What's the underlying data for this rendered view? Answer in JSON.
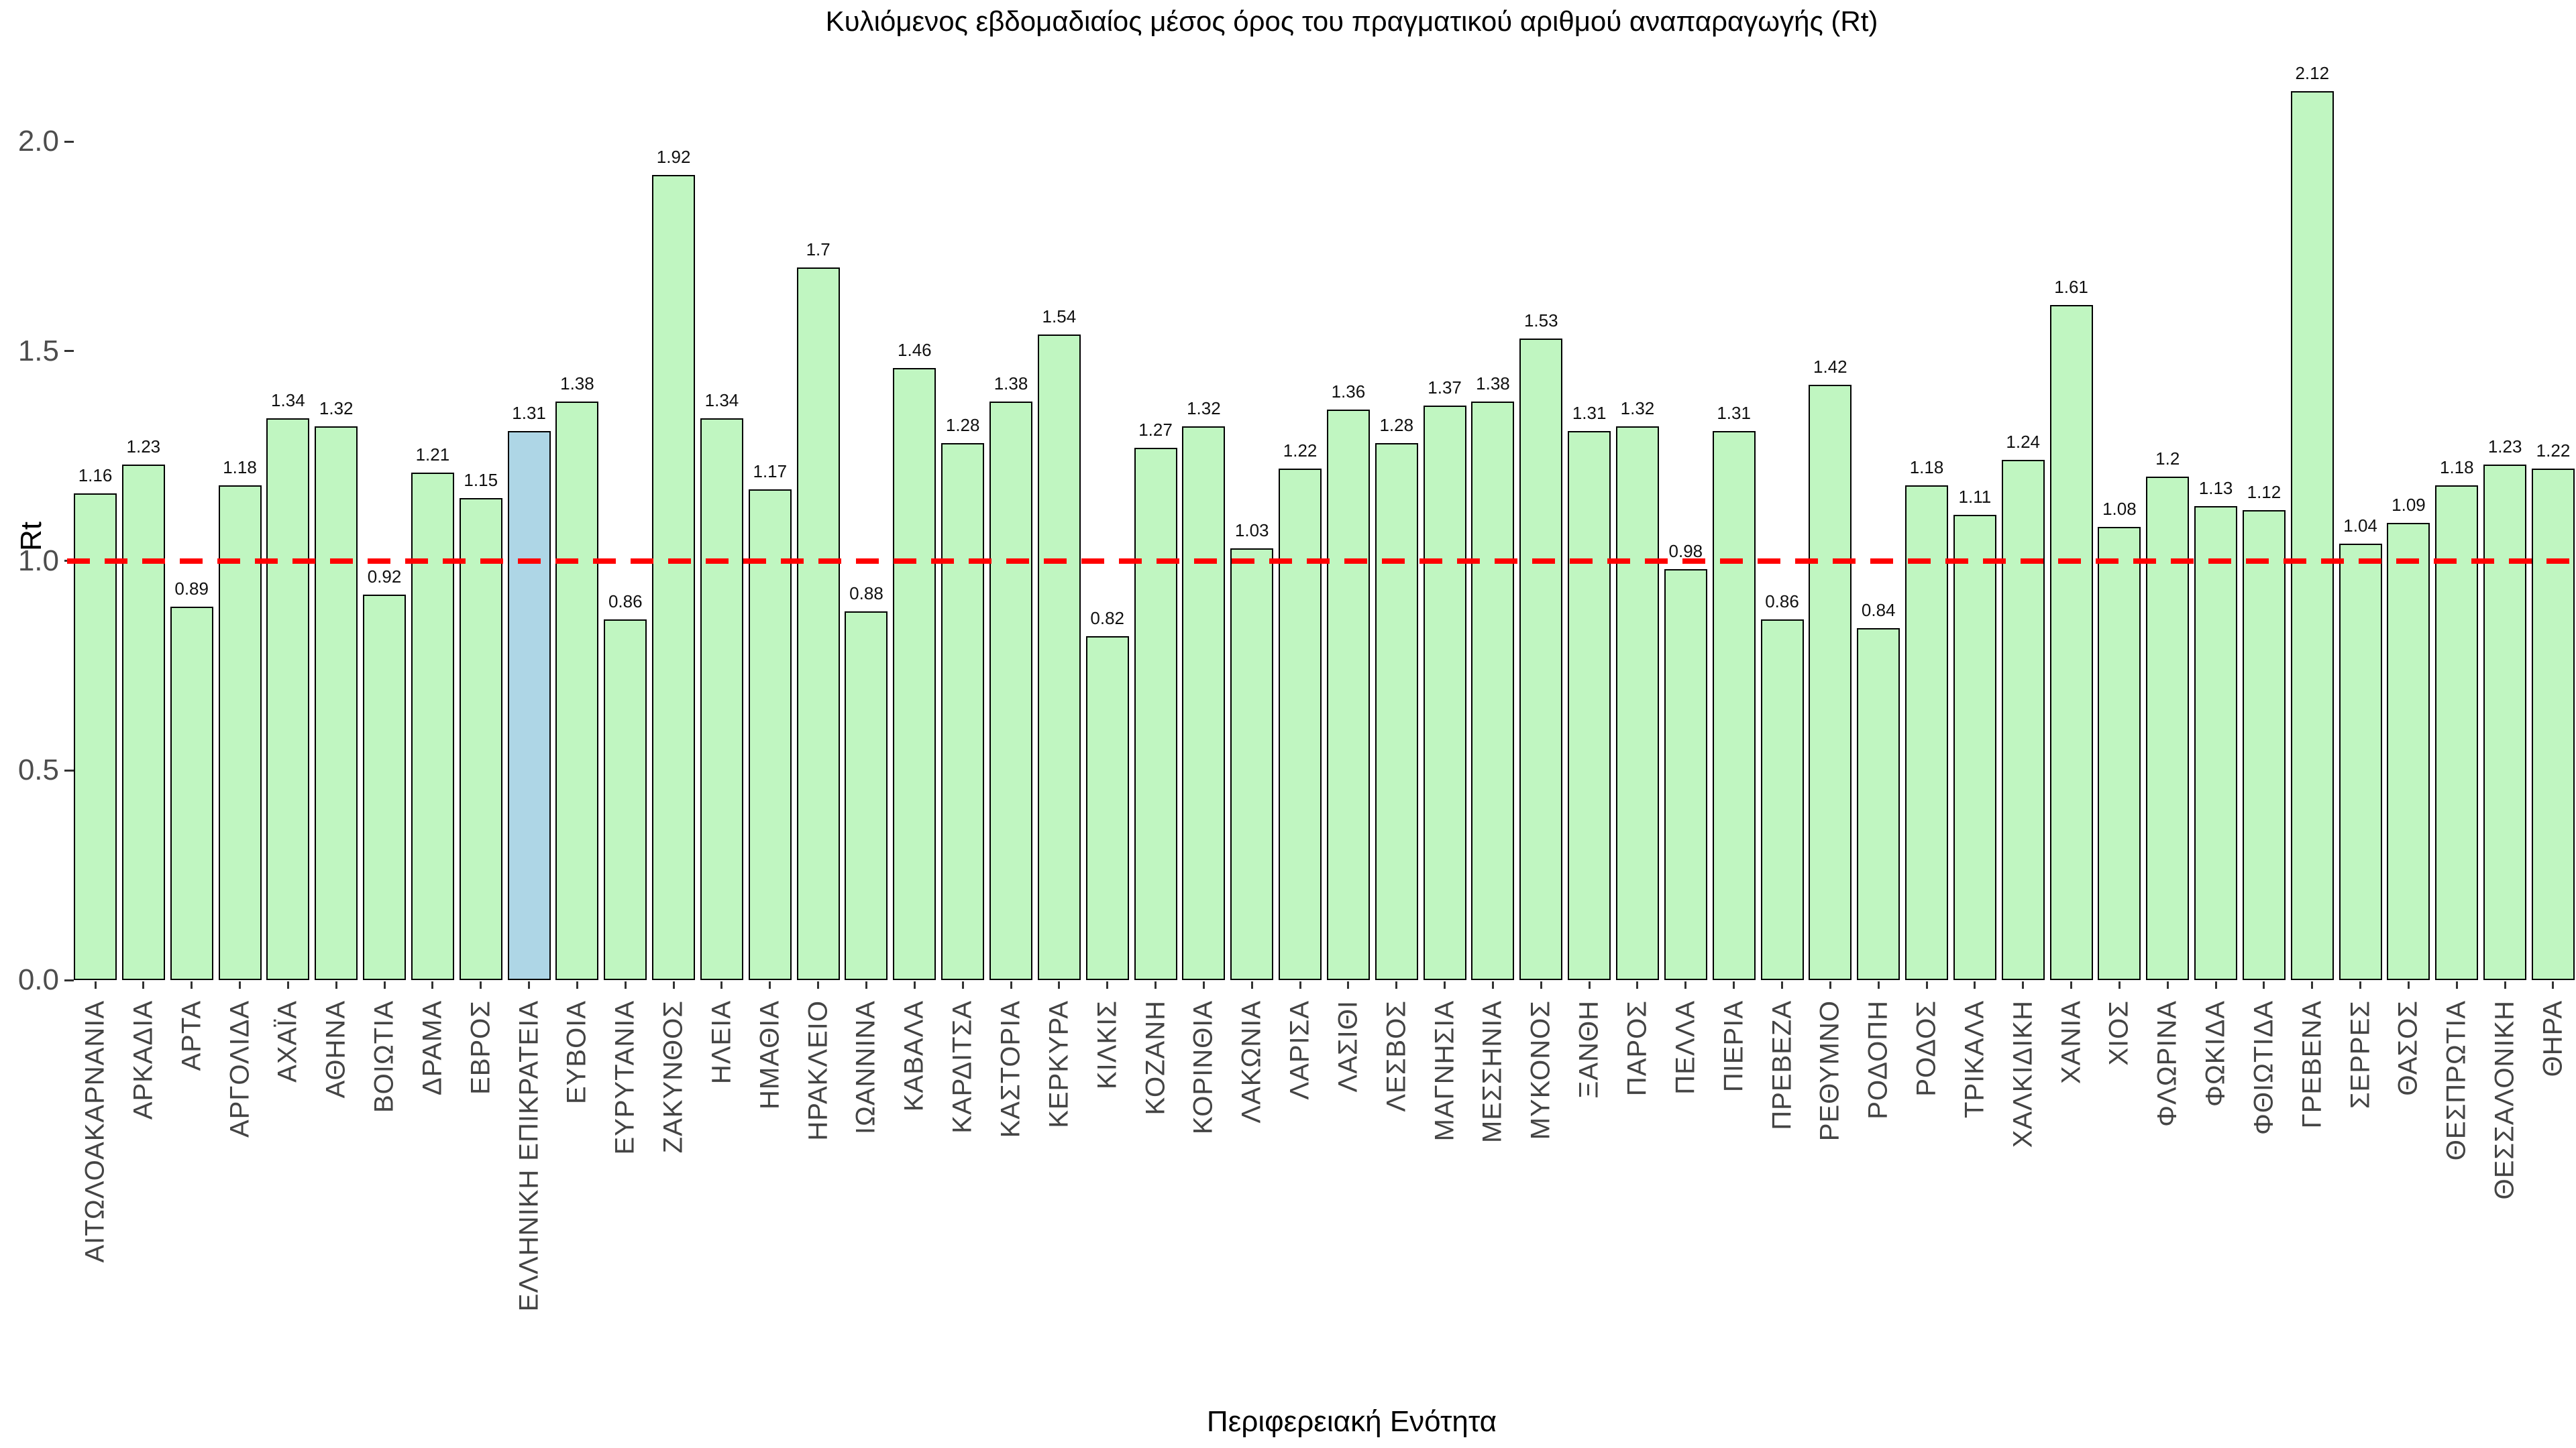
{
  "chart_data": {
    "type": "bar",
    "title": "Κυλιόμενος εβδομαδιαίος μέσος όρος του πραγματικού αριθμού αναπαραγωγής (Rt)",
    "xlabel": "Περιφερειακή Ενότητα",
    "ylabel": "Rt",
    "ylim": [
      0,
      2.24
    ],
    "grid": false,
    "legend": "none",
    "reference_line_y": 1.0,
    "y_tick_labels": [
      "0.0",
      "0.5",
      "1.0",
      "1.5",
      "2.0"
    ],
    "y_tick_values": [
      0.0,
      0.5,
      1.0,
      1.5,
      2.0
    ],
    "highlight_category": "ΕΛΛΗΝΙΚΗ ΕΠΙΚΡΑΤΕΙΑ",
    "highlight_index": 9,
    "categories": [
      "ΑΙΤΩΛΟΑΚΑΡΝΑΝΙΑ",
      "ΑΡΚΑΔΙΑ",
      "ΑΡΤΑ",
      "ΑΡΓΟΛΙΔΑ",
      "ΑΧΑΪΑ",
      "ΑΘΗΝΑ",
      "ΒΟΙΩΤΙΑ",
      "ΔΡΑΜΑ",
      "ΕΒΡΟΣ",
      "ΕΛΛΗΝΙΚΗ ΕΠΙΚΡΑΤΕΙΑ",
      "ΕΥΒΟΙΑ",
      "ΕΥΡΥΤΑΝΙΑ",
      "ΖΑΚΥΝΘΟΣ",
      "ΗΛΕΙΑ",
      "ΗΜΑΘΙΑ",
      "ΗΡΑΚΛΕΙΟ",
      "ΙΩΑΝΝΙΝΑ",
      "ΚΑΒΑΛΑ",
      "ΚΑΡΔΙΤΣΑ",
      "ΚΑΣΤΟΡΙΑ",
      "ΚΕΡΚΥΡΑ",
      "ΚΙΛΚΙΣ",
      "ΚΟΖΑΝΗ",
      "ΚΟΡΙΝΘΙΑ",
      "ΛΑΚΩΝΙΑ",
      "ΛΑΡΙΣΑ",
      "ΛΑΣΙΘΙ",
      "ΛΕΣΒΟΣ",
      "ΜΑΓΝΗΣΙΑ",
      "ΜΕΣΣΗΝΙΑ",
      "ΜΥΚΟΝΟΣ",
      "ΞΑΝΘΗ",
      "ΠΑΡΟΣ",
      "ΠΕΛΛΑ",
      "ΠΙΕΡΙΑ",
      "ΠΡΕΒΕΖΑ",
      "ΡΕΘΥΜΝΟ",
      "ΡΟΔΟΠΗ",
      "ΡΟΔΟΣ",
      "ΤΡΙΚΑΛΑ",
      "ΧΑΛΚΙΔΙΚΗ",
      "ΧΑΝΙΑ",
      "ΧΙΟΣ",
      "ΦΛΩΡΙΝΑ",
      "ΦΩΚΙΔΑ",
      "ΦΘΙΩΤΙΔΑ",
      "ΓΡΕΒΕΝΑ",
      "ΣΕΡΡΕΣ",
      "ΘΑΣΟΣ",
      "ΘΕΣΠΡΩΤΙΑ",
      "ΘΕΣΣΑΛΟΝΙΚΗ",
      "ΘΗΡΑ"
    ],
    "values": [
      1.16,
      1.23,
      0.89,
      1.18,
      1.34,
      1.32,
      0.92,
      1.21,
      1.15,
      1.31,
      1.38,
      0.86,
      1.92,
      1.34,
      1.17,
      1.7,
      0.88,
      1.46,
      1.28,
      1.38,
      1.54,
      0.82,
      1.27,
      1.32,
      1.03,
      1.22,
      1.36,
      1.28,
      1.37,
      1.38,
      1.53,
      1.31,
      1.32,
      0.98,
      1.31,
      0.86,
      1.42,
      0.84,
      1.18,
      1.11,
      1.24,
      1.61,
      1.08,
      1.2,
      1.13,
      1.12,
      2.12,
      1.04,
      1.09,
      1.18,
      1.23,
      1.22
    ]
  },
  "colors": {
    "bar_fill": "#c0f6c1",
    "bar_border": "#000000",
    "highlight_fill": "#aed6e6",
    "reference_line": "#ff0000",
    "axis_tick_label": "#4d4d4d",
    "text": "#000000",
    "background": "#ffffff"
  }
}
